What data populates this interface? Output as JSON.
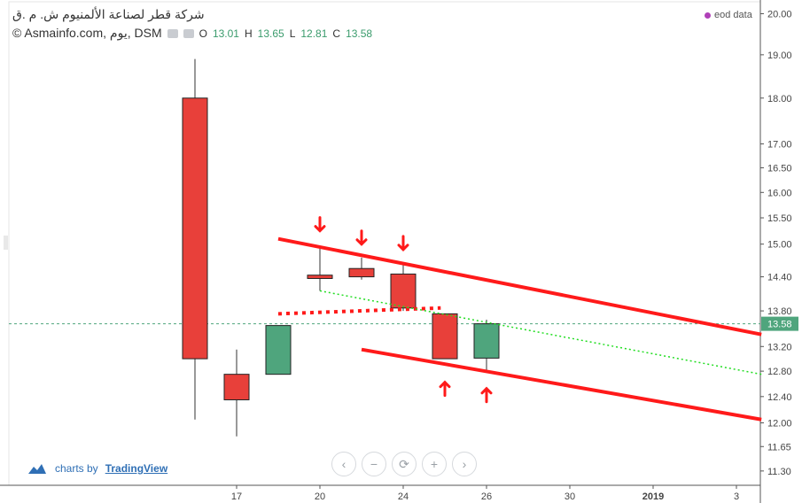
{
  "header": {
    "title": "شركة قطر لصناعة الألمنيوم ش. م .ق",
    "source": "© Asmainfo.com, يوم, DSM",
    "ohlc": [
      {
        "k": "O",
        "v": "13.01"
      },
      {
        "k": "H",
        "v": "13.65"
      },
      {
        "k": "L",
        "v": "12.81"
      },
      {
        "k": "C",
        "v": "13.58"
      }
    ]
  },
  "eod_label": "eod data",
  "branding": {
    "prefix": "charts by",
    "name": "TradingView"
  },
  "nav_icons": [
    "chevron-left-icon",
    "minus-icon",
    "reset-icon",
    "plus-icon",
    "chevron-right-icon"
  ],
  "colors": {
    "up": "#4fa57d",
    "down": "#e8403a",
    "trend": "#ff1a1a",
    "dotted_green": "#22dd22",
    "last_price": "#4fa57d"
  },
  "chart_data": {
    "type": "candlestick",
    "scale": "log",
    "ylim": [
      11.1,
      20.3
    ],
    "y_ticks": [
      20.0,
      19.0,
      18.0,
      17.0,
      16.5,
      16.0,
      15.5,
      15.0,
      14.4,
      13.8,
      13.2,
      12.8,
      12.4,
      12.0,
      11.65,
      11.3
    ],
    "y_tick_labels": [
      "20.00",
      "19.00",
      "18.00",
      "17.00",
      "16.50",
      "16.00",
      "15.50",
      "15.00",
      "14.40",
      "13.80",
      "13.20",
      "12.80",
      "12.40",
      "12.00",
      "11.65",
      "11.30"
    ],
    "x_ticks": [
      {
        "label": "17",
        "slot": 1
      },
      {
        "label": "20",
        "slot": 3
      },
      {
        "label": "24",
        "slot": 5
      },
      {
        "label": "26",
        "slot": 7
      },
      {
        "label": "30",
        "slot": 9
      },
      {
        "label": "2019",
        "slot": 11,
        "bold": true
      },
      {
        "label": "3",
        "slot": 13
      }
    ],
    "candles": [
      {
        "open": 18.0,
        "high": 18.9,
        "low": 12.05,
        "close": 13.0
      },
      {
        "open": 12.75,
        "high": 13.15,
        "low": 11.8,
        "close": 12.35
      },
      {
        "open": 12.75,
        "high": 13.55,
        "low": 12.75,
        "close": 13.55
      },
      {
        "open": 14.43,
        "high": 14.95,
        "low": 14.15,
        "close": 14.37
      },
      {
        "open": 14.55,
        "high": 14.75,
        "low": 14.35,
        "close": 14.4
      },
      {
        "open": 14.45,
        "high": 14.65,
        "low": 13.8,
        "close": 13.85
      },
      {
        "open": 13.75,
        "high": 13.75,
        "low": 13.0,
        "close": 13.0
      },
      {
        "open": 13.01,
        "high": 13.65,
        "low": 12.81,
        "close": 13.58
      }
    ],
    "last_price": 13.58,
    "last_price_label": "13.58",
    "trendlines": [
      {
        "style": "solid",
        "color": "trend",
        "from": {
          "slot": 2,
          "price": 15.1
        },
        "to": {
          "slot": 13.6,
          "price": 13.4
        }
      },
      {
        "style": "solid",
        "color": "trend",
        "from": {
          "slot": 4,
          "price": 13.15
        },
        "to": {
          "slot": 13.6,
          "price": 12.05
        }
      },
      {
        "style": "dotted-thick",
        "color": "trend",
        "from": {
          "slot": 2,
          "price": 13.75
        },
        "to": {
          "slot": 5.9,
          "price": 13.85
        }
      },
      {
        "style": "dotted-thin",
        "color": "dotted_green",
        "from": {
          "slot": 3,
          "price": 14.15
        },
        "to": {
          "slot": 13.6,
          "price": 12.75
        }
      }
    ],
    "arrows": [
      {
        "dir": "down",
        "slot": 3,
        "price": 15.1
      },
      {
        "dir": "down",
        "slot": 4,
        "price": 14.85
      },
      {
        "dir": "down",
        "slot": 5,
        "price": 14.75
      },
      {
        "dir": "up",
        "slot": 6,
        "price": 12.75
      },
      {
        "dir": "up",
        "slot": 7,
        "price": 12.65
      }
    ]
  }
}
